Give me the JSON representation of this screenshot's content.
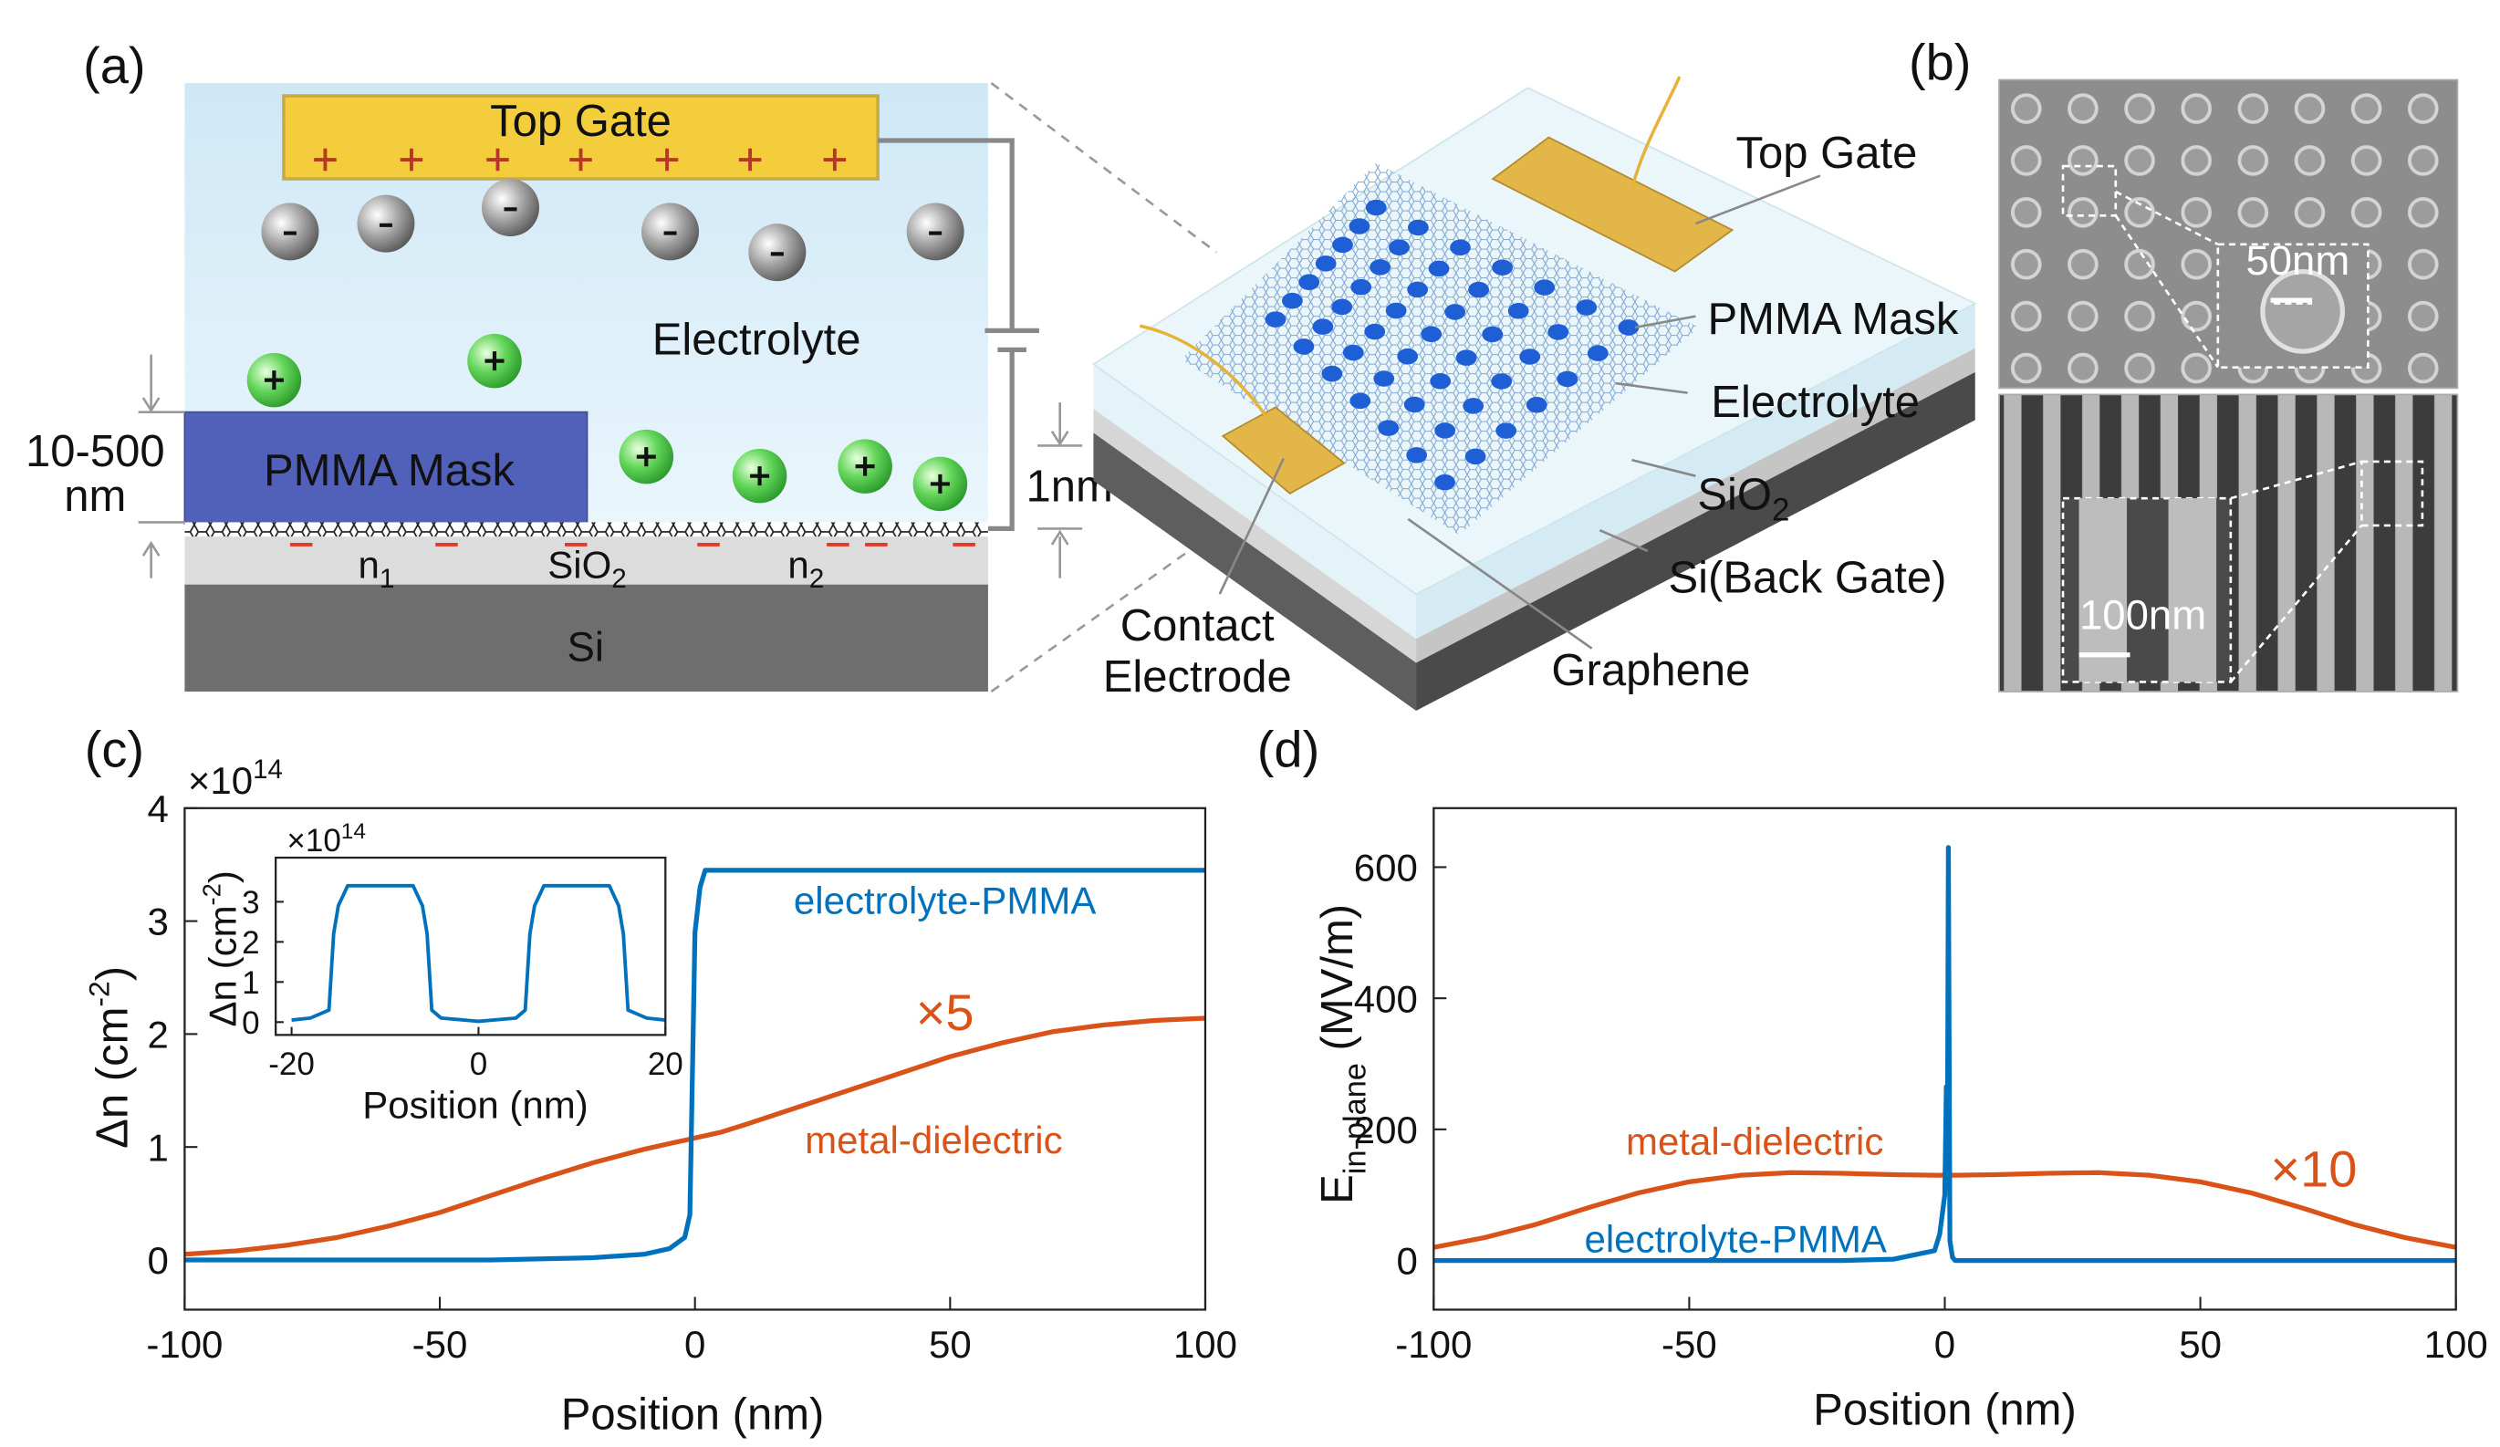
{
  "panel_a": {
    "label": "(a)",
    "schematic": {
      "top_gate": "Top Gate",
      "electrolyte": "Electrolyte",
      "pmma_mask": "PMMA Mask",
      "thickness": "10-500",
      "thickness_unit": "nm",
      "n1": {
        "text": "n",
        "sub": "1"
      },
      "sio2": {
        "text": "SiO",
        "sub": "2"
      },
      "n2": {
        "text": "n",
        "sub": "2"
      },
      "si": "Si",
      "gap": "1nm"
    },
    "device": {
      "top_gate": "Top Gate",
      "pmma_mask": "PMMA Mask",
      "electrolyte": "Electrolyte",
      "sio2": {
        "text": "SiO",
        "sub": "2"
      },
      "si": "Si(Back Gate)",
      "contact": "Contact",
      "electrode": "Electrode",
      "graphene": "Graphene"
    }
  },
  "panel_b": {
    "label": "(b)",
    "scale_top": "50nm",
    "scale_bottom": "100nm"
  },
  "chart_data": [
    {
      "type": "line",
      "panel_label": "(c)",
      "xlabel": "Position (nm)",
      "ylabel": {
        "text": "Δn (cm",
        "sup": "-2",
        "tail": ")"
      },
      "multiplier": {
        "text": "×10",
        "sup": "14"
      },
      "x": [
        -100,
        -90,
        -80,
        -70,
        -60,
        -50,
        -40,
        -30,
        -20,
        -10,
        -5,
        -2,
        -1,
        0,
        1,
        2,
        5,
        10,
        20,
        30,
        40,
        50,
        60,
        70,
        80,
        90,
        100
      ],
      "series": [
        {
          "name": "electrolyte-PMMA",
          "color": "#0072bd",
          "values": [
            0,
            0,
            0,
            0,
            0,
            0,
            0,
            0.01,
            0.02,
            0.05,
            0.1,
            0.2,
            0.4,
            2.9,
            3.3,
            3.45,
            3.45,
            3.45,
            3.45,
            3.45,
            3.45,
            3.45,
            3.45,
            3.45,
            3.45,
            3.45,
            3.45
          ]
        },
        {
          "name": "metal-dielectric",
          "color": "#d95319",
          "values": [
            0.05,
            0.08,
            0.13,
            0.2,
            0.3,
            0.42,
            0.57,
            0.72,
            0.86,
            0.98,
            1.03,
            1.06,
            1.07,
            1.08,
            1.09,
            1.1,
            1.13,
            1.2,
            1.35,
            1.5,
            1.65,
            1.8,
            1.92,
            2.02,
            2.08,
            2.12,
            2.14
          ]
        }
      ],
      "annotations": [
        "×5"
      ],
      "xlim": [
        -100,
        100
      ],
      "ylim": [
        -0.44,
        4
      ],
      "xticks": [
        -100,
        -50,
        0,
        50,
        100
      ],
      "yticks": [
        0,
        1,
        2,
        3,
        4
      ]
    },
    {
      "type": "line",
      "xlabel": "Position (nm)",
      "ylabel": {
        "text": "Δn (cm",
        "sup": "-2",
        "tail": ")"
      },
      "multiplier": {
        "text": "×10",
        "sup": "14"
      },
      "x": [
        -20,
        -18,
        -16,
        -15.5,
        -15,
        -14,
        -8,
        -7,
        -6,
        -5.5,
        -5,
        -4,
        0,
        4,
        5,
        5.5,
        6,
        7,
        8,
        14,
        15,
        15.5,
        16,
        18,
        20
      ],
      "series": [
        {
          "color": "#0072bd",
          "values": [
            0.05,
            0.1,
            0.3,
            2.2,
            2.9,
            3.4,
            3.4,
            3.4,
            2.9,
            2.2,
            0.3,
            0.1,
            0.02,
            0.1,
            0.3,
            2.2,
            2.9,
            3.4,
            3.4,
            3.4,
            2.9,
            2.2,
            0.3,
            0.1,
            0.05
          ]
        }
      ],
      "xlim": [
        -21.7,
        20
      ],
      "ylim": [
        -0.32,
        4.1
      ],
      "xticks": [
        -20,
        0,
        20
      ],
      "yticks": [
        0,
        1,
        2,
        3
      ]
    },
    {
      "type": "line",
      "panel_label": "(d)",
      "xlabel": "Position (nm)",
      "ylabel": {
        "text": "E",
        "sub": "in-plane",
        "tail": " (MV/m)"
      },
      "x": [
        -100,
        -90,
        -80,
        -70,
        -60,
        -50,
        -40,
        -30,
        -20,
        -10,
        -2,
        -1,
        0,
        0.3,
        0.5,
        0.7,
        1,
        1.5,
        2,
        10,
        20,
        30,
        40,
        50,
        60,
        70,
        80,
        90,
        100
      ],
      "series": [
        {
          "name": "electrolyte-PMMA",
          "color": "#0072bd",
          "values": [
            0,
            0,
            0,
            0,
            0,
            0,
            0,
            0,
            0,
            2,
            15,
            40,
            100,
            265,
            130,
            630,
            30,
            5,
            0,
            0,
            0,
            0,
            0,
            0,
            0,
            0,
            0,
            0,
            0
          ]
        },
        {
          "name": "metal-dielectric",
          "color": "#d95319",
          "values": [
            20,
            35,
            55,
            80,
            103,
            120,
            130,
            134,
            133,
            131,
            130,
            130,
            130,
            130,
            130,
            130,
            130,
            130,
            130,
            131,
            133,
            134,
            130,
            120,
            103,
            80,
            55,
            35,
            20
          ]
        }
      ],
      "annotations": [
        "×10"
      ],
      "xlim": [
        -100,
        100
      ],
      "ylim": [
        -75,
        690
      ],
      "xticks": [
        -100,
        -50,
        0,
        50,
        100
      ],
      "yticks": [
        0,
        200,
        400,
        600
      ]
    }
  ]
}
